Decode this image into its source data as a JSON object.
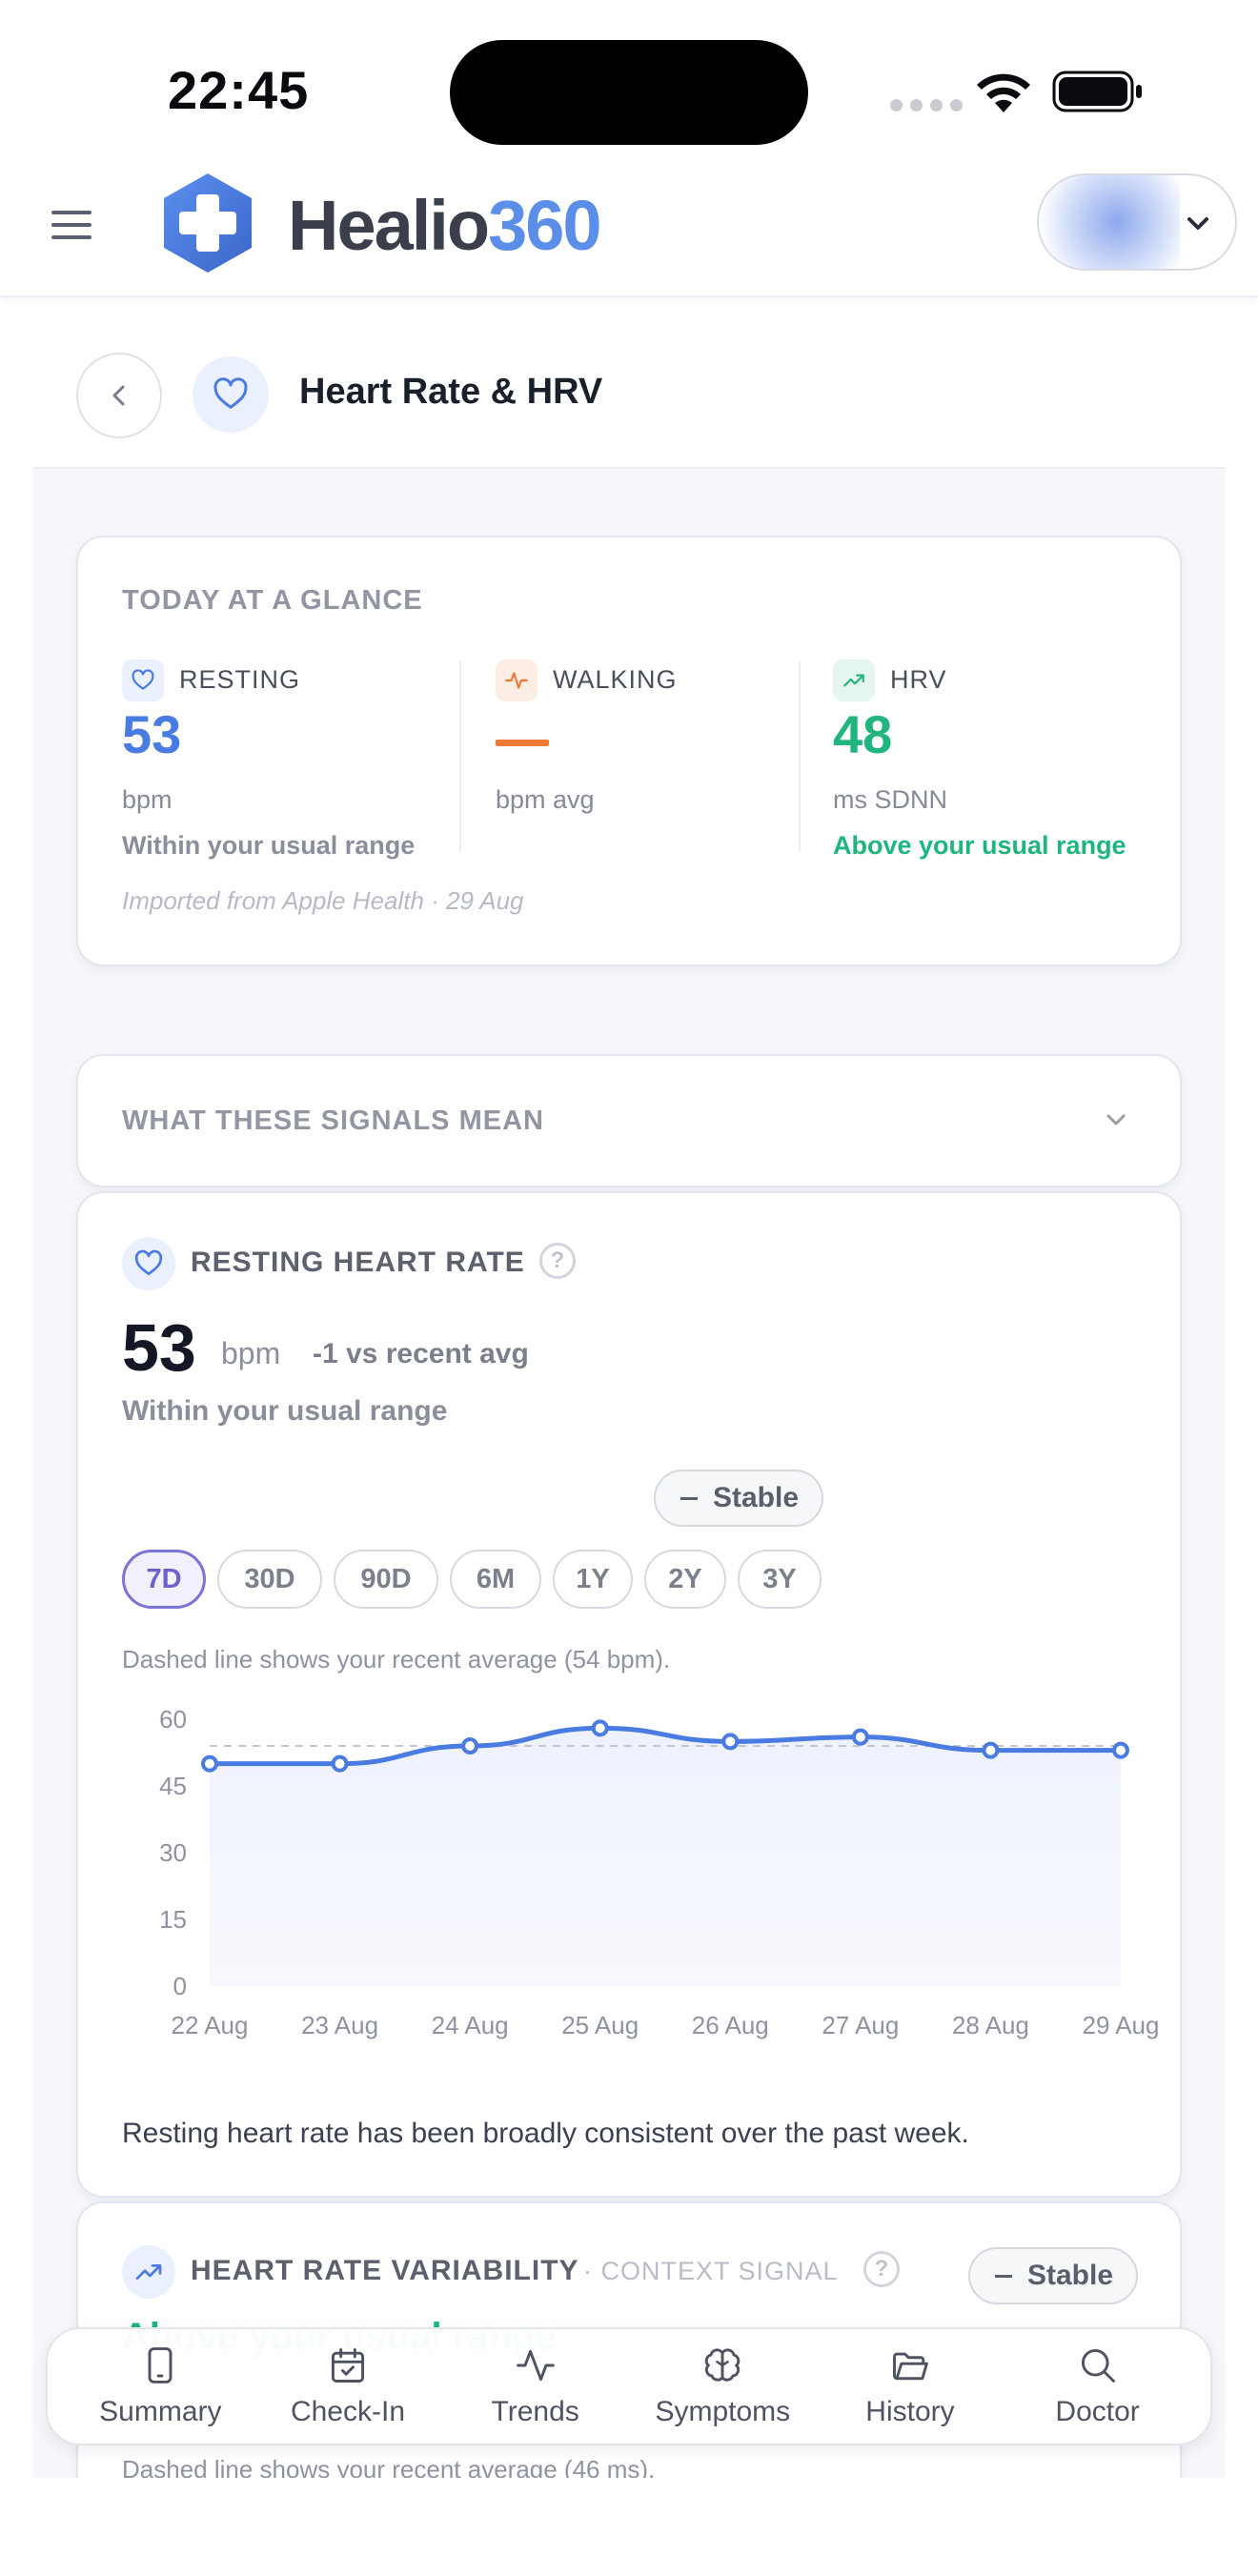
{
  "status_bar": {
    "time": "22:45"
  },
  "header": {
    "brand_a": "Healio",
    "brand_b": "360"
  },
  "page": {
    "title": "Heart Rate & HRV"
  },
  "glance": {
    "label": "TODAY AT A GLANCE",
    "metrics": [
      {
        "name": "RESTING",
        "value": "53",
        "unit": "bpm",
        "note": "Within your usual range",
        "icon": "heart-icon"
      },
      {
        "name": "WALKING",
        "value": "",
        "unit": "bpm avg",
        "note": "",
        "icon": "pulse-icon"
      },
      {
        "name": "HRV",
        "value": "48",
        "unit": "ms SDNN",
        "note": "Above your usual range",
        "icon": "trend-up-icon"
      }
    ],
    "import_note": "Imported from Apple Health · 29 Aug"
  },
  "signals": {
    "label": "WHAT THESE SIGNALS MEAN"
  },
  "rhr": {
    "title": "RESTING HEART RATE",
    "value": "53",
    "unit": "bpm",
    "delta": "-1 vs recent avg",
    "range_note": "Within your usual range",
    "trend": "Stable",
    "ranges": [
      "7D",
      "30D",
      "90D",
      "6M",
      "1Y",
      "2Y",
      "3Y"
    ],
    "active_range": "7D",
    "chart_note": "Dashed line shows your recent average (54 bpm).",
    "summary": "Resting heart rate has been broadly consistent over the past week."
  },
  "chart_data": {
    "type": "area",
    "categories": [
      "22 Aug",
      "23 Aug",
      "24 Aug",
      "25 Aug",
      "26 Aug",
      "27 Aug",
      "28 Aug",
      "29 Aug"
    ],
    "values": [
      50,
      50,
      54,
      58,
      55,
      56,
      53,
      53
    ],
    "average": 54,
    "yticks": [
      0,
      15,
      30,
      45,
      60
    ],
    "ylim": [
      0,
      60
    ],
    "colors": {
      "line": "#4a7be2",
      "fill": "#eef2fd",
      "average": "#c4c7d0"
    }
  },
  "hrv": {
    "title": "HEART RATE VARIABILITY",
    "context": "· CONTEXT SIGNAL",
    "trend": "Stable",
    "partial_text": "Above your usual range",
    "chart_note": "Dashed line shows your recent average (46 ms)."
  },
  "nav": [
    {
      "label": "Summary",
      "icon": "phone-icon"
    },
    {
      "label": "Check-In",
      "icon": "calendar-check-icon"
    },
    {
      "label": "Trends",
      "icon": "activity-icon"
    },
    {
      "label": "Symptoms",
      "icon": "brain-icon"
    },
    {
      "label": "History",
      "icon": "folder-icon"
    },
    {
      "label": "Doctor",
      "icon": "search-icon"
    }
  ],
  "colors": {
    "accent": "#4a7be2",
    "green": "#1fb57c",
    "orange": "#f07a35",
    "brand_gray": "#3a3f4b",
    "brand_blue": "#5b8ee8"
  }
}
